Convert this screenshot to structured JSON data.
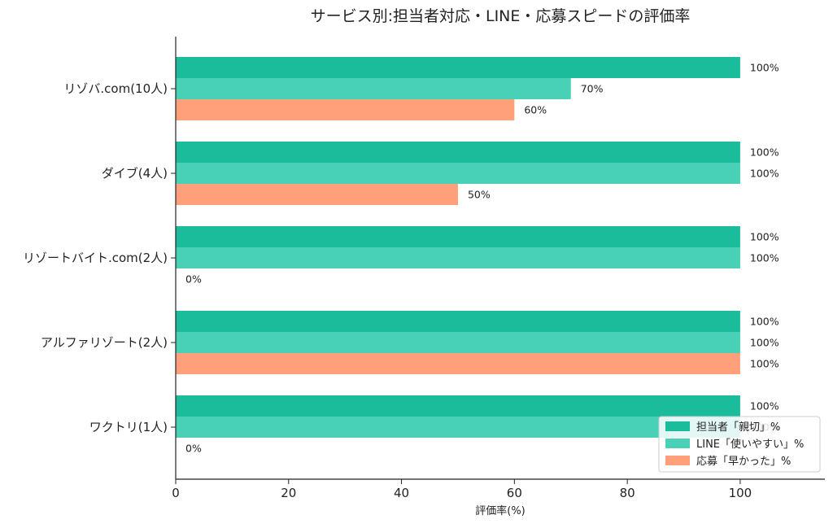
{
  "chart_data": {
    "type": "bar",
    "orientation": "horizontal",
    "title": "サービス別:担当者対応・LINE・応募スピードの評価率",
    "xlabel": "評価率(%)",
    "ylabel": "",
    "xlim": [
      0,
      115
    ],
    "xticks": [
      0,
      20,
      40,
      60,
      80,
      100
    ],
    "grid": false,
    "legend_position": "bottom-right",
    "categories": [
      "リゾバ.com(10人)",
      "ダイブ(4人)",
      "リゾートバイト.com(2人)",
      "アルファリゾート(2人)",
      "ワクトリ(1人)"
    ],
    "value_suffix": "%",
    "series": [
      {
        "name": "担当者「親切」%",
        "color": "#1abc9c",
        "values": [
          100,
          100,
          100,
          100,
          100
        ]
      },
      {
        "name": "LINE「使いやすい」%",
        "color": "#48d1b6",
        "values": [
          70,
          100,
          100,
          100,
          100
        ]
      },
      {
        "name": "応募「早かった」%",
        "color": "#ffa07a",
        "values": [
          60,
          50,
          0,
          100,
          0
        ]
      }
    ]
  }
}
